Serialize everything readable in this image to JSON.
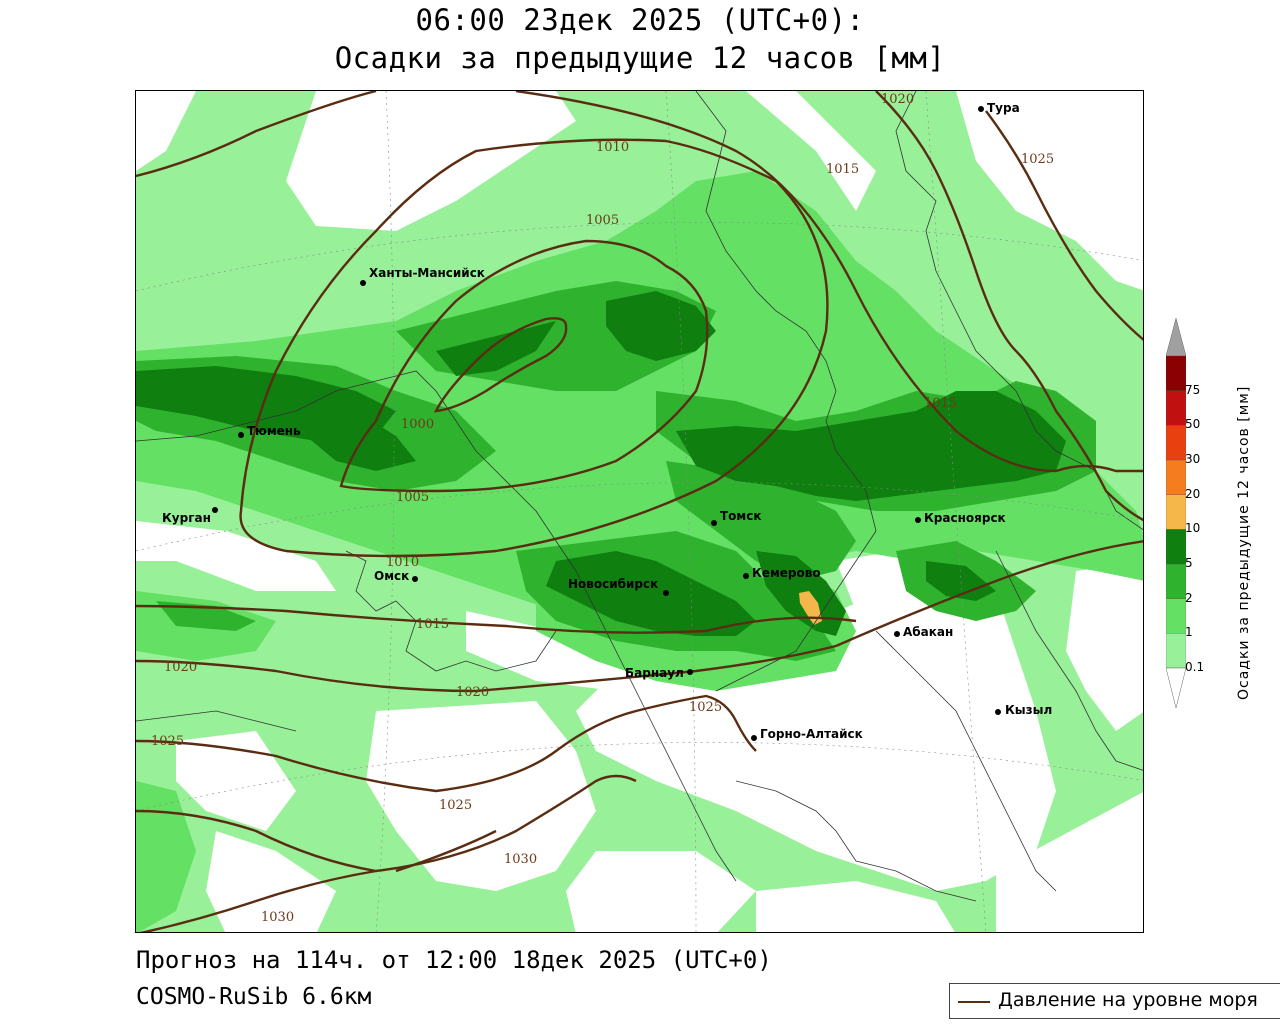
{
  "header": {
    "line1": "06:00 23дек 2025 (UTC+0):",
    "line2": "Осадки за предыдущие 12 часов [мм]"
  },
  "footer": {
    "forecast": "Прогноз на 114ч. от 12:00 18дек 2025 (UTC+0)",
    "model": "COSMO-RuSib 6.6км"
  },
  "legend": {
    "pressure_label": "Давление на уровне моря",
    "pressure_color": "#5a2d12"
  },
  "colorbar": {
    "title": "Осадки за предыдущие 12 часов [мм]",
    "ticks": [
      "0.1",
      "1",
      "2",
      "5",
      "10",
      "20",
      "30",
      "50",
      "75"
    ],
    "colors": [
      "#98f098",
      "#64e064",
      "#2fb32f",
      "#0f7f0f",
      "#f5b64a",
      "#f57d1e",
      "#e8400f",
      "#c01010",
      "#8b0000"
    ],
    "over_color": "#a0a0a0",
    "under_color": "#ffffff"
  },
  "cities": [
    {
      "name": "Тура"
    },
    {
      "name": "Ханты-Мансийск"
    },
    {
      "name": "Тюмень"
    },
    {
      "name": "Курган"
    },
    {
      "name": "Омск"
    },
    {
      "name": "Томск"
    },
    {
      "name": "Красноярск"
    },
    {
      "name": "Кемерово"
    },
    {
      "name": "Новосибирск"
    },
    {
      "name": "Абакан"
    },
    {
      "name": "Барнаул"
    },
    {
      "name": "Кызыл"
    },
    {
      "name": "Горно-Алтайск"
    }
  ],
  "isobars": [
    "1000",
    "1005",
    "1005",
    "1010",
    "1010",
    "1015",
    "1015",
    "1015",
    "1020",
    "1020",
    "1020",
    "1025",
    "1025",
    "1025",
    "1025",
    "1030",
    "1030"
  ]
}
